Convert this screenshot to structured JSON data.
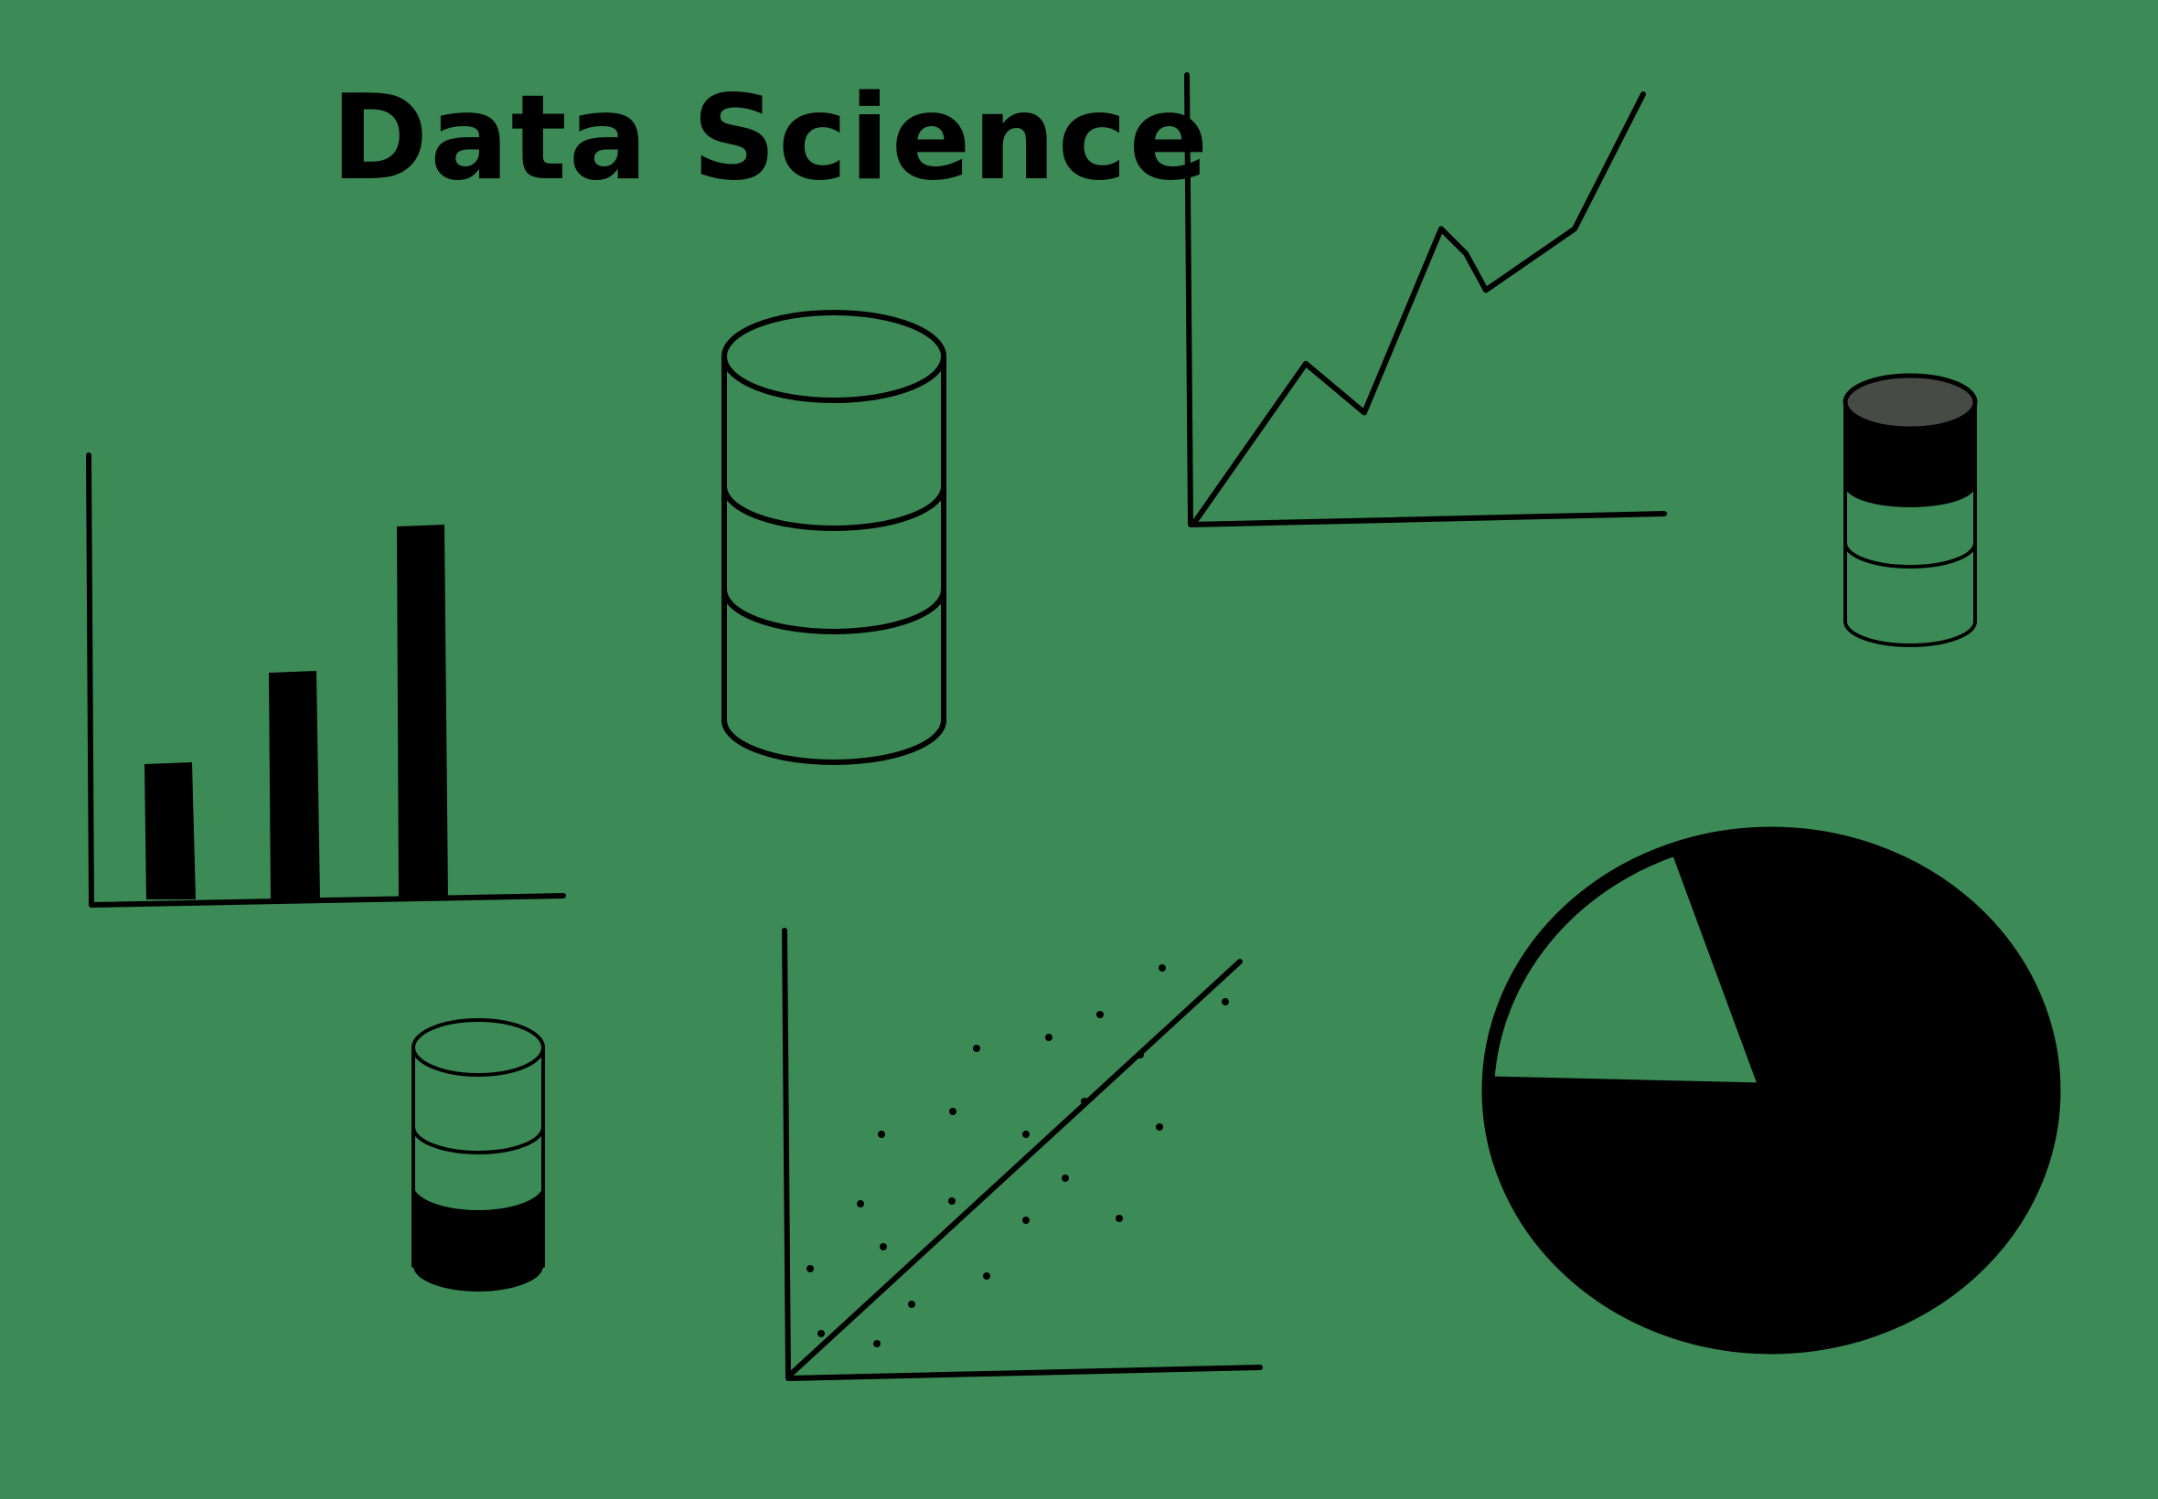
{
  "title": "Data Science",
  "colors": {
    "background": "#3c8a55",
    "ink": "#000000",
    "cylinder_cap": "#474a45"
  },
  "icons": [
    "bar-chart-icon",
    "database-cylinder-icon",
    "line-chart-icon",
    "small-database-icon",
    "small-database-filled-icon",
    "scatter-plot-icon",
    "pie-chart-icon"
  ],
  "bar_chart": {
    "values": [
      1.5,
      2.5,
      4.1
    ]
  },
  "line_chart": {
    "values": [
      0,
      1.3,
      0.9,
      2.4,
      2.2,
      1.9,
      2.4,
      3.5
    ]
  },
  "pie_chart": {
    "slices": [
      0.82,
      0.18
    ]
  },
  "small_database_top": {
    "filled_fraction": 0.35
  },
  "small_database_bottom": {
    "filled_fraction": 0.35
  }
}
